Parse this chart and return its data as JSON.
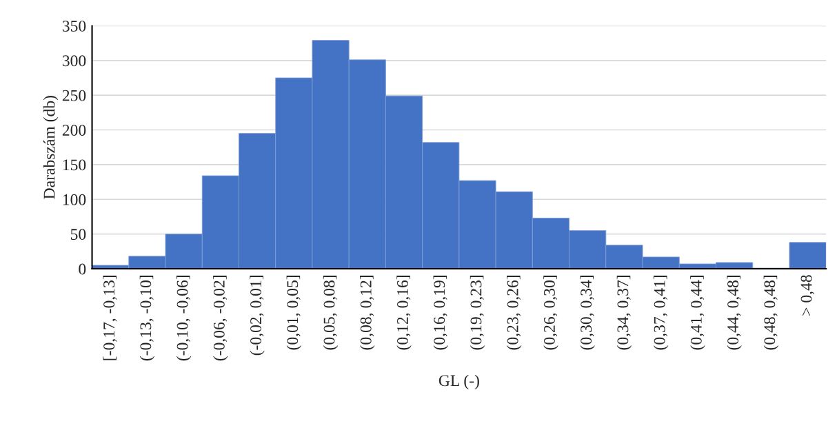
{
  "chart_data": {
    "type": "bar",
    "xlabel": "GL (-)",
    "ylabel": "Darabszám (db)",
    "categories": [
      "[-0,17, -0,13]",
      "(-0,13, -0,10]",
      "(-0,10, -0,06]",
      "(-0,06, -0,02]",
      "(-0,02, 0,01]",
      "(0,01, 0,05]",
      "(0,05, 0,08]",
      "(0,08, 0,12]",
      "(0,12, 0,16]",
      "(0,16, 0,19]",
      "(0,19, 0,23]",
      "(0,23, 0,26]",
      "(0,26, 0,30]",
      "(0,30, 0,34]",
      "(0,34, 0,37]",
      "(0,37, 0,41]",
      "(0,41, 0,44]",
      "(0,44, 0,48]",
      "(0,48, 0,48]",
      "> 0,48"
    ],
    "values": [
      5,
      18,
      50,
      134,
      195,
      275,
      329,
      301,
      249,
      182,
      127,
      111,
      73,
      55,
      34,
      17,
      7,
      9,
      1,
      38
    ],
    "color": "#4472c4",
    "ylim": [
      0,
      350
    ],
    "yticks": [
      0,
      50,
      100,
      150,
      200,
      250,
      300,
      350
    ],
    "grid": "y",
    "legend": false
  }
}
